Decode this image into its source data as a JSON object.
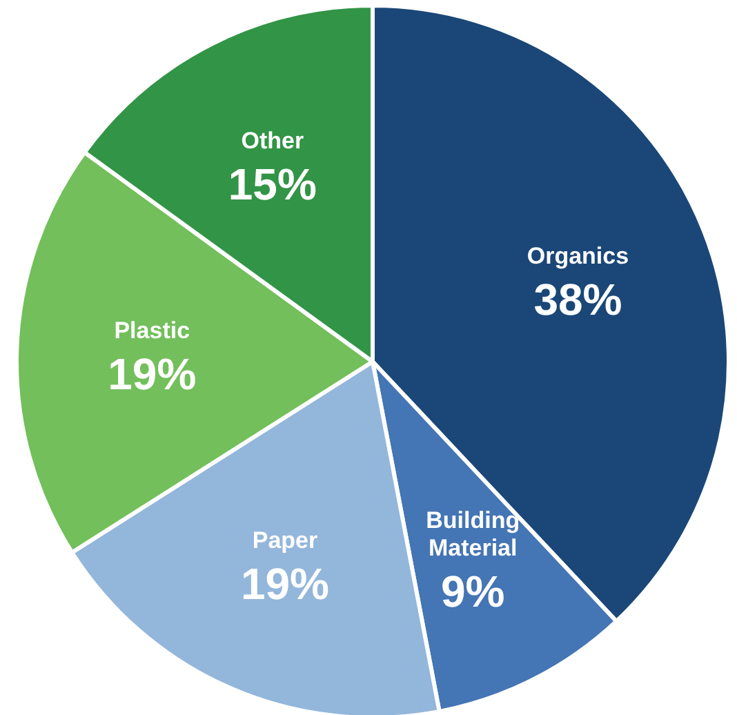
{
  "chart_data": {
    "type": "pie",
    "categories": [
      "Organics",
      "Building Material",
      "Paper",
      "Plastic",
      "Other"
    ],
    "values": [
      38,
      9,
      19,
      19,
      15
    ],
    "value_labels": [
      "38%",
      "9%",
      "19%",
      "19%",
      "15%"
    ],
    "colors": [
      "#1a4777",
      "#4475b4",
      "#93b6db",
      "#72bf5b",
      "#329446"
    ]
  }
}
